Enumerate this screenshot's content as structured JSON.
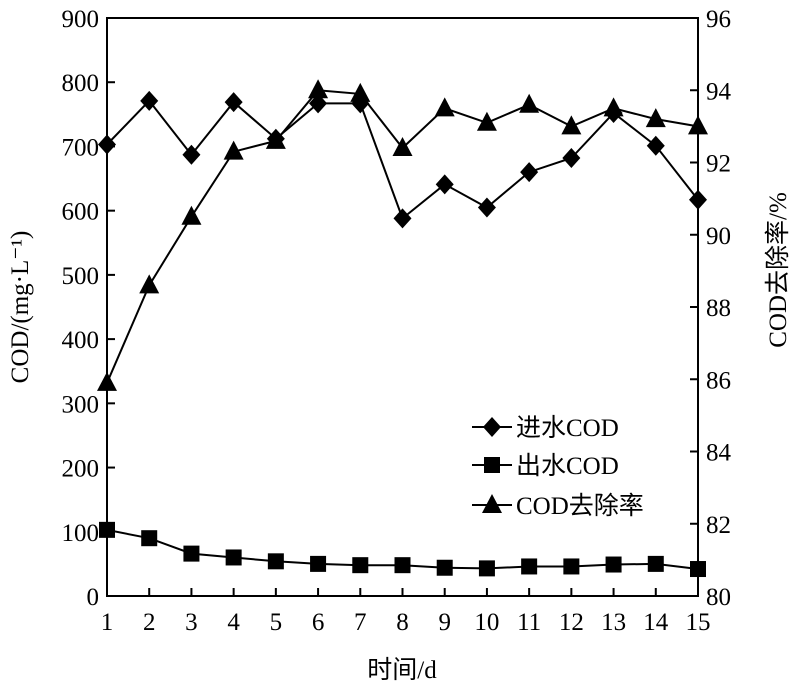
{
  "chart_data": {
    "type": "line",
    "xlabel": "时间/d",
    "ylabel_left": "COD/(mg·L⁻¹)",
    "ylabel_right": "COD去除率/%",
    "x": [
      1,
      2,
      3,
      4,
      5,
      6,
      7,
      8,
      9,
      10,
      11,
      12,
      13,
      14,
      15
    ],
    "xlim": [
      1,
      15
    ],
    "ylim_left": [
      0,
      900
    ],
    "ylim_right": [
      80,
      96
    ],
    "yticks_left": [
      0,
      100,
      200,
      300,
      400,
      500,
      600,
      700,
      800,
      900
    ],
    "yticks_right": [
      80,
      82,
      84,
      86,
      88,
      90,
      92,
      94,
      96
    ],
    "grid": false,
    "legend_position": "lower-right",
    "series": [
      {
        "name": "进水COD",
        "axis": "left",
        "marker": "diamond",
        "values": [
          703,
          771,
          687,
          769,
          712,
          767,
          767,
          588,
          641,
          605,
          660,
          682,
          752,
          701,
          617
        ]
      },
      {
        "name": "出水COD",
        "axis": "left",
        "marker": "square",
        "values": [
          103,
          90,
          66,
          60,
          54,
          50,
          48,
          48,
          44,
          43,
          46,
          46,
          49,
          50,
          42
        ]
      },
      {
        "name": "COD去除率",
        "axis": "right",
        "marker": "triangle",
        "values": [
          85.9,
          88.6,
          90.5,
          92.3,
          92.6,
          94.0,
          93.9,
          92.4,
          93.5,
          93.1,
          93.6,
          93.0,
          93.5,
          93.2,
          93.0
        ]
      }
    ]
  }
}
